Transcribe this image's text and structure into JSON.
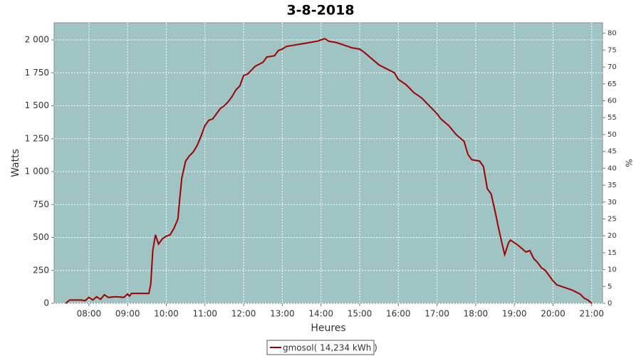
{
  "chart_data": {
    "type": "line",
    "title": "3-8-2018",
    "x_label": "Heures",
    "y_label": "Watts",
    "y2_label": "%",
    "x": [
      7.4,
      7.5,
      7.6,
      7.8,
      7.9,
      8.0,
      8.1,
      8.2,
      8.3,
      8.4,
      8.5,
      8.7,
      8.9,
      9.0,
      9.05,
      9.1,
      9.3,
      9.55,
      9.6,
      9.65,
      9.72,
      9.8,
      9.9,
      10.0,
      10.1,
      10.2,
      10.3,
      10.35,
      10.4,
      10.5,
      10.6,
      10.7,
      10.8,
      10.9,
      11.0,
      11.1,
      11.2,
      11.3,
      11.4,
      11.5,
      11.6,
      11.7,
      11.8,
      11.9,
      12.0,
      12.1,
      12.2,
      12.3,
      12.5,
      12.6,
      12.8,
      12.9,
      13.0,
      13.1,
      13.3,
      13.5,
      13.7,
      13.9,
      14.1,
      14.2,
      14.4,
      14.6,
      14.8,
      15.0,
      15.1,
      15.3,
      15.5,
      15.7,
      15.9,
      16.0,
      16.2,
      16.4,
      16.6,
      16.8,
      17.0,
      17.1,
      17.3,
      17.5,
      17.7,
      17.8,
      17.9,
      18.1,
      18.2,
      18.3,
      18.4,
      18.5,
      18.6,
      18.7,
      18.75,
      18.85,
      18.9,
      19.1,
      19.3,
      19.4,
      19.5,
      19.6,
      19.7,
      19.8,
      20.0,
      20.1,
      20.3,
      20.5,
      20.7,
      20.8,
      20.9,
      21.0
    ],
    "series": [
      {
        "name": "gmosol( 14,234 kWh )",
        "color": "#a00000",
        "values": [
          0,
          25,
          25,
          25,
          20,
          45,
          25,
          50,
          30,
          65,
          45,
          50,
          45,
          70,
          55,
          75,
          75,
          75,
          150,
          400,
          520,
          450,
          490,
          510,
          520,
          570,
          640,
          800,
          950,
          1080,
          1120,
          1150,
          1200,
          1270,
          1350,
          1390,
          1400,
          1440,
          1480,
          1500,
          1530,
          1570,
          1620,
          1650,
          1730,
          1740,
          1770,
          1800,
          1830,
          1870,
          1880,
          1920,
          1930,
          1950,
          1960,
          1970,
          1980,
          1990,
          2010,
          1990,
          1980,
          1960,
          1940,
          1930,
          1910,
          1860,
          1810,
          1780,
          1750,
          1700,
          1660,
          1600,
          1560,
          1500,
          1440,
          1400,
          1350,
          1280,
          1230,
          1130,
          1090,
          1080,
          1040,
          870,
          830,
          700,
          560,
          430,
          370,
          460,
          480,
          440,
          390,
          400,
          340,
          310,
          270,
          250,
          170,
          140,
          120,
          100,
          70,
          40,
          25,
          0
        ]
      }
    ],
    "xlim": [
      7.1,
      21.28
    ],
    "xticks": [
      {
        "value": 8,
        "label": "08:00"
      },
      {
        "value": 9,
        "label": "09:00"
      },
      {
        "value": 10,
        "label": "10:00"
      },
      {
        "value": 11,
        "label": "11:00"
      },
      {
        "value": 12,
        "label": "12:00"
      },
      {
        "value": 13,
        "label": "13:00"
      },
      {
        "value": 14,
        "label": "14:00"
      },
      {
        "value": 15,
        "label": "15:00"
      },
      {
        "value": 16,
        "label": "16:00"
      },
      {
        "value": 17,
        "label": "17:00"
      },
      {
        "value": 18,
        "label": "18:00"
      },
      {
        "value": 19,
        "label": "19:00"
      },
      {
        "value": 20,
        "label": "20:00"
      },
      {
        "value": 21,
        "label": "21:00"
      }
    ],
    "ylim": [
      0,
      2130
    ],
    "yticks": [
      0,
      250,
      500,
      750,
      {
        "value": 1000,
        "label": "1 000"
      },
      {
        "value": 1250,
        "label": "1 250"
      },
      {
        "value": 1500,
        "label": "1 500"
      },
      {
        "value": 1750,
        "label": "1 750"
      },
      {
        "value": 2000,
        "label": "2 000"
      }
    ],
    "y2lim": [
      0,
      83.1
    ],
    "y2ticks": [
      0,
      5,
      10,
      15,
      20,
      25,
      30,
      35,
      40,
      45,
      50,
      55,
      60,
      65,
      70,
      75,
      80
    ],
    "grid": true,
    "background": "#a0c4c4",
    "legend": "bottom"
  }
}
